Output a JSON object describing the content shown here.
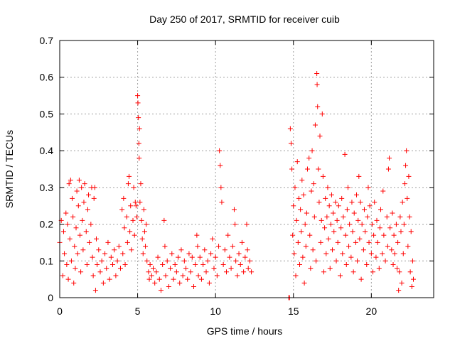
{
  "chart_data": {
    "type": "scatter",
    "title": "Day 250 of 2017, SRMTID for receiver cuib",
    "xlabel": "GPS time / hours",
    "ylabel": "SRMTID / TECUs",
    "xlim": [
      0,
      24
    ],
    "ylim": [
      0,
      0.7
    ],
    "x_ticks": [
      0,
      5,
      10,
      15,
      20
    ],
    "x_tick_labels": [
      "0",
      "5",
      "10",
      "15",
      "20"
    ],
    "y_ticks": [
      0,
      0.1,
      0.2,
      0.3,
      0.4,
      0.5,
      0.6,
      0.7
    ],
    "y_tick_labels": [
      "0",
      "0.1",
      "0.2",
      "0.3",
      "0.4",
      "0.5",
      "0.6",
      "0.7"
    ],
    "grid": true,
    "marker": "+",
    "marker_color": "#ff0000",
    "series": [
      {
        "name": "SRMTID",
        "points": [
          [
            0.0,
            0.15
          ],
          [
            0.1,
            0.21
          ],
          [
            0.2,
            0.06
          ],
          [
            0.25,
            0.18
          ],
          [
            0.3,
            0.12
          ],
          [
            0.4,
            0.23
          ],
          [
            0.45,
            0.09
          ],
          [
            0.5,
            0.2
          ],
          [
            0.55,
            0.05
          ],
          [
            0.6,
            0.31
          ],
          [
            0.65,
            0.16
          ],
          [
            0.7,
            0.32
          ],
          [
            0.75,
            0.1
          ],
          [
            0.8,
            0.27
          ],
          [
            0.85,
            0.22
          ],
          [
            0.9,
            0.04
          ],
          [
            0.95,
            0.14
          ],
          [
            1.0,
            0.08
          ],
          [
            1.05,
            0.19
          ],
          [
            1.1,
            0.29
          ],
          [
            1.15,
            0.12
          ],
          [
            1.2,
            0.25
          ],
          [
            1.25,
            0.32
          ],
          [
            1.3,
            0.17
          ],
          [
            1.35,
            0.07
          ],
          [
            1.4,
            0.3
          ],
          [
            1.45,
            0.21
          ],
          [
            1.5,
            0.13
          ],
          [
            1.55,
            0.26
          ],
          [
            1.6,
            0.31
          ],
          [
            1.7,
            0.18
          ],
          [
            1.75,
            0.09
          ],
          [
            1.8,
            0.24
          ],
          [
            1.85,
            0.28
          ],
          [
            1.9,
            0.15
          ],
          [
            2.0,
            0.2
          ],
          [
            2.05,
            0.3
          ],
          [
            2.1,
            0.11
          ],
          [
            2.15,
            0.06
          ],
          [
            2.2,
            0.27
          ],
          [
            2.25,
            0.3
          ],
          [
            2.3,
            0.02
          ],
          [
            2.35,
            0.16
          ],
          [
            2.4,
            0.09
          ],
          [
            2.5,
            0.13
          ],
          [
            2.6,
            0.07
          ],
          [
            2.7,
            0.1
          ],
          [
            2.8,
            0.04
          ],
          [
            2.9,
            0.12
          ],
          [
            3.0,
            0.08
          ],
          [
            3.1,
            0.15
          ],
          [
            3.2,
            0.05
          ],
          [
            3.3,
            0.11
          ],
          [
            3.4,
            0.09
          ],
          [
            3.5,
            0.13
          ],
          [
            3.6,
            0.06
          ],
          [
            3.7,
            0.1
          ],
          [
            3.8,
            0.14
          ],
          [
            3.9,
            0.08
          ],
          [
            4.0,
            0.24
          ],
          [
            4.05,
            0.12
          ],
          [
            4.1,
            0.27
          ],
          [
            4.15,
            0.19
          ],
          [
            4.2,
            0.09
          ],
          [
            4.3,
            0.22
          ],
          [
            4.35,
            0.15
          ],
          [
            4.4,
            0.31
          ],
          [
            4.45,
            0.33
          ],
          [
            4.5,
            0.18
          ],
          [
            4.55,
            0.25
          ],
          [
            4.6,
            0.13
          ],
          [
            4.7,
            0.21
          ],
          [
            4.75,
            0.3
          ],
          [
            4.8,
            0.17
          ],
          [
            4.85,
            0.26
          ],
          [
            4.9,
            0.25
          ],
          [
            4.95,
            0.22
          ],
          [
            5.0,
            0.55
          ],
          [
            5.02,
            0.53
          ],
          [
            5.05,
            0.49
          ],
          [
            5.08,
            0.42
          ],
          [
            5.1,
            0.38
          ],
          [
            5.12,
            0.46
          ],
          [
            5.15,
            0.26
          ],
          [
            5.2,
            0.31
          ],
          [
            5.25,
            0.21
          ],
          [
            5.3,
            0.16
          ],
          [
            5.35,
            0.12
          ],
          [
            5.4,
            0.24
          ],
          [
            5.45,
            0.18
          ],
          [
            5.5,
            0.14
          ],
          [
            5.55,
            0.2
          ],
          [
            5.6,
            0.1
          ],
          [
            5.7,
            0.07
          ],
          [
            5.75,
            0.05
          ],
          [
            5.8,
            0.09
          ],
          [
            5.9,
            0.06
          ],
          [
            6.0,
            0.08
          ],
          [
            6.1,
            0.04
          ],
          [
            6.2,
            0.07
          ],
          [
            6.3,
            0.11
          ],
          [
            6.4,
            0.05
          ],
          [
            6.5,
            0.02
          ],
          [
            6.6,
            0.09
          ],
          [
            6.7,
            0.21
          ],
          [
            6.75,
            0.14
          ],
          [
            6.8,
            0.06
          ],
          [
            6.9,
            0.1
          ],
          [
            7.0,
            0.03
          ],
          [
            7.1,
            0.08
          ],
          [
            7.2,
            0.12
          ],
          [
            7.3,
            0.05
          ],
          [
            7.4,
            0.09
          ],
          [
            7.5,
            0.07
          ],
          [
            7.6,
            0.11
          ],
          [
            7.7,
            0.04
          ],
          [
            7.8,
            0.13
          ],
          [
            7.9,
            0.06
          ],
          [
            8.0,
            0.1
          ],
          [
            8.1,
            0.08
          ],
          [
            8.2,
            0.05
          ],
          [
            8.3,
            0.12
          ],
          [
            8.4,
            0.07
          ],
          [
            8.5,
            0.11
          ],
          [
            8.6,
            0.03
          ],
          [
            8.7,
            0.09
          ],
          [
            8.8,
            0.17
          ],
          [
            8.85,
            0.14
          ],
          [
            8.9,
            0.06
          ],
          [
            9.0,
            0.11
          ],
          [
            9.1,
            0.05
          ],
          [
            9.2,
            0.09
          ],
          [
            9.3,
            0.13
          ],
          [
            9.4,
            0.07
          ],
          [
            9.5,
            0.1
          ],
          [
            9.6,
            0.04
          ],
          [
            9.7,
            0.12
          ],
          [
            9.8,
            0.16
          ],
          [
            9.9,
            0.08
          ],
          [
            10.0,
            0.11
          ],
          [
            10.1,
            0.06
          ],
          [
            10.2,
            0.14
          ],
          [
            10.25,
            0.4
          ],
          [
            10.3,
            0.36
          ],
          [
            10.35,
            0.3
          ],
          [
            10.4,
            0.26
          ],
          [
            10.5,
            0.09
          ],
          [
            10.6,
            0.13
          ],
          [
            10.7,
            0.07
          ],
          [
            10.8,
            0.17
          ],
          [
            10.9,
            0.11
          ],
          [
            11.0,
            0.08
          ],
          [
            11.1,
            0.14
          ],
          [
            11.2,
            0.24
          ],
          [
            11.25,
            0.2
          ],
          [
            11.3,
            0.1
          ],
          [
            11.4,
            0.06
          ],
          [
            11.5,
            0.12
          ],
          [
            11.6,
            0.09
          ],
          [
            11.7,
            0.15
          ],
          [
            11.8,
            0.07
          ],
          [
            11.9,
            0.11
          ],
          [
            12.0,
            0.2
          ],
          [
            12.05,
            0.13
          ],
          [
            12.1,
            0.08
          ],
          [
            12.2,
            0.1
          ],
          [
            12.3,
            0.07
          ],
          [
            14.7,
            0.0
          ],
          [
            14.75,
            0.0
          ],
          [
            14.8,
            0.46
          ],
          [
            14.85,
            0.42
          ],
          [
            14.9,
            0.35
          ],
          [
            14.95,
            0.17
          ],
          [
            15.0,
            0.25
          ],
          [
            15.05,
            0.12
          ],
          [
            15.1,
            0.3
          ],
          [
            15.15,
            0.06
          ],
          [
            15.2,
            0.21
          ],
          [
            15.25,
            0.37
          ],
          [
            15.3,
            0.15
          ],
          [
            15.35,
            0.27
          ],
          [
            15.4,
            0.09
          ],
          [
            15.45,
            0.24
          ],
          [
            15.5,
            0.18
          ],
          [
            15.55,
            0.32
          ],
          [
            15.6,
            0.11
          ],
          [
            15.65,
            0.28
          ],
          [
            15.7,
            0.04
          ],
          [
            15.75,
            0.2
          ],
          [
            15.8,
            0.14
          ],
          [
            15.85,
            0.23
          ],
          [
            15.9,
            0.35
          ],
          [
            16.0,
            0.38
          ],
          [
            16.05,
            0.17
          ],
          [
            16.1,
            0.08
          ],
          [
            16.15,
            0.29
          ],
          [
            16.2,
            0.4
          ],
          [
            16.25,
            0.13
          ],
          [
            16.3,
            0.31
          ],
          [
            16.35,
            0.22
          ],
          [
            16.4,
            0.47
          ],
          [
            16.45,
            0.1
          ],
          [
            16.5,
            0.61
          ],
          [
            16.52,
            0.58
          ],
          [
            16.55,
            0.52
          ],
          [
            16.6,
            0.35
          ],
          [
            16.65,
            0.26
          ],
          [
            16.7,
            0.44
          ],
          [
            16.75,
            0.15
          ],
          [
            16.8,
            0.21
          ],
          [
            16.85,
            0.5
          ],
          [
            16.9,
            0.33
          ],
          [
            16.95,
            0.07
          ],
          [
            17.0,
            0.19
          ],
          [
            17.05,
            0.27
          ],
          [
            17.1,
            0.12
          ],
          [
            17.15,
            0.22
          ],
          [
            17.2,
            0.3
          ],
          [
            17.25,
            0.16
          ],
          [
            17.3,
            0.25
          ],
          [
            17.35,
            0.08
          ],
          [
            17.4,
            0.2
          ],
          [
            17.45,
            0.28
          ],
          [
            17.5,
            0.13
          ],
          [
            17.55,
            0.23
          ],
          [
            17.6,
            0.18
          ],
          [
            17.7,
            0.26
          ],
          [
            17.75,
            0.1
          ],
          [
            17.8,
            0.21
          ],
          [
            17.85,
            0.15
          ],
          [
            17.9,
            0.25
          ],
          [
            18.0,
            0.06
          ],
          [
            18.05,
            0.19
          ],
          [
            18.1,
            0.27
          ],
          [
            18.15,
            0.12
          ],
          [
            18.2,
            0.22
          ],
          [
            18.3,
            0.39
          ],
          [
            18.35,
            0.17
          ],
          [
            18.4,
            0.09
          ],
          [
            18.45,
            0.24
          ],
          [
            18.5,
            0.3
          ],
          [
            18.55,
            0.14
          ],
          [
            18.6,
            0.2
          ],
          [
            18.7,
            0.11
          ],
          [
            18.75,
            0.26
          ],
          [
            18.8,
            0.18
          ],
          [
            18.85,
            0.07
          ],
          [
            18.9,
            0.23
          ],
          [
            19.0,
            0.15
          ],
          [
            19.05,
            0.28
          ],
          [
            19.1,
            0.1
          ],
          [
            19.15,
            0.21
          ],
          [
            19.2,
            0.33
          ],
          [
            19.25,
            0.16
          ],
          [
            19.3,
            0.26
          ],
          [
            19.35,
            0.05
          ],
          [
            19.4,
            0.2
          ],
          [
            19.5,
            0.13
          ],
          [
            19.55,
            0.24
          ],
          [
            19.6,
            0.18
          ],
          [
            19.7,
            0.09
          ],
          [
            19.75,
            0.22
          ],
          [
            19.8,
            0.3
          ],
          [
            19.85,
            0.15
          ],
          [
            19.9,
            0.25
          ],
          [
            20.0,
            0.12
          ],
          [
            20.05,
            0.2
          ],
          [
            20.1,
            0.07
          ],
          [
            20.15,
            0.17
          ],
          [
            20.2,
            0.26
          ],
          [
            20.3,
            0.11
          ],
          [
            20.35,
            0.21
          ],
          [
            20.4,
            0.15
          ],
          [
            20.5,
            0.08
          ],
          [
            20.55,
            0.19
          ],
          [
            20.6,
            0.24
          ],
          [
            20.7,
            0.12
          ],
          [
            20.75,
            0.29
          ],
          [
            20.8,
            0.17
          ],
          [
            20.9,
            0.1
          ],
          [
            21.0,
            0.22
          ],
          [
            21.05,
            0.14
          ],
          [
            21.1,
            0.35
          ],
          [
            21.15,
            0.38
          ],
          [
            21.2,
            0.19
          ],
          [
            21.3,
            0.13
          ],
          [
            21.35,
            0.23
          ],
          [
            21.4,
            0.09
          ],
          [
            21.45,
            0.17
          ],
          [
            21.5,
            0.12
          ],
          [
            21.6,
            0.2
          ],
          [
            21.65,
            0.08
          ],
          [
            21.7,
            0.15
          ],
          [
            21.75,
            0.02
          ],
          [
            21.8,
            0.07
          ],
          [
            21.85,
            0.22
          ],
          [
            21.9,
            0.18
          ],
          [
            21.95,
            0.04
          ],
          [
            22.0,
            0.26
          ],
          [
            22.05,
            0.12
          ],
          [
            22.1,
            0.2
          ],
          [
            22.15,
            0.31
          ],
          [
            22.2,
            0.36
          ],
          [
            22.25,
            0.4
          ],
          [
            22.3,
            0.27
          ],
          [
            22.35,
            0.14
          ],
          [
            22.4,
            0.33
          ],
          [
            22.45,
            0.22
          ],
          [
            22.5,
            0.07
          ],
          [
            22.55,
            0.18
          ],
          [
            22.6,
            0.03
          ],
          [
            22.65,
            0.1
          ],
          [
            22.7,
            0.05
          ]
        ]
      }
    ]
  }
}
